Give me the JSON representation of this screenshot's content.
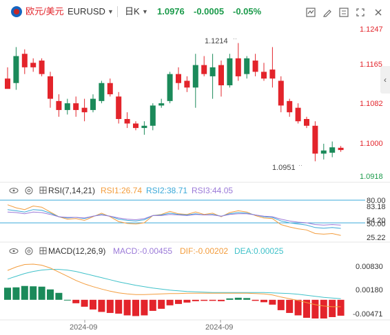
{
  "header": {
    "pair_name": "欧元/美元",
    "symbol": "EURUSD",
    "timeframe": "日K",
    "price": "1.0976",
    "change": "-0.0005",
    "change_pct": "-0.05%"
  },
  "colors": {
    "up": "#1b8a5a",
    "down": "#e3242b",
    "price_change": "#1a9a4a",
    "rsi1": "#f39c3c",
    "rsi2": "#3aa8d8",
    "rsi3": "#9b7ad8",
    "macd_line": "#f39c3c",
    "dea_line": "#3fc1c9"
  },
  "toolbar_icons": [
    "indicator-icon",
    "draw-icon",
    "settings-icon",
    "fullscreen-icon",
    "close-icon"
  ],
  "chart_data": [
    {
      "type": "candlestick",
      "price_axis_ticks": [
        "1.1247",
        "1.1165",
        "1.1082",
        "1.1000",
        "1.0918"
      ],
      "ylim": [
        1.0918,
        1.1247
      ],
      "annotations": {
        "high_label": "1.1214",
        "low_label": "1.0951"
      },
      "candles": [
        {
          "o": 1.1135,
          "h": 1.116,
          "l": 1.1115,
          "c": 1.1112
        },
        {
          "o": 1.1125,
          "h": 1.1205,
          "l": 1.111,
          "c": 1.1185
        },
        {
          "o": 1.119,
          "h": 1.12,
          "l": 1.1145,
          "c": 1.116
        },
        {
          "o": 1.117,
          "h": 1.118,
          "l": 1.115,
          "c": 1.116
        },
        {
          "o": 1.1175,
          "h": 1.118,
          "l": 1.114,
          "c": 1.1145
        },
        {
          "o": 1.114,
          "h": 1.115,
          "l": 1.107,
          "c": 1.109
        },
        {
          "o": 1.1085,
          "h": 1.11,
          "l": 1.105,
          "c": 1.1065
        },
        {
          "o": 1.1065,
          "h": 1.109,
          "l": 1.1055,
          "c": 1.108
        },
        {
          "o": 1.108,
          "h": 1.1095,
          "l": 1.105,
          "c": 1.1065
        },
        {
          "o": 1.107,
          "h": 1.109,
          "l": 1.104,
          "c": 1.106
        },
        {
          "o": 1.1065,
          "h": 1.11,
          "l": 1.106,
          "c": 1.109
        },
        {
          "o": 1.1085,
          "h": 1.113,
          "l": 1.108,
          "c": 1.1125
        },
        {
          "o": 1.1125,
          "h": 1.1135,
          "l": 1.1095,
          "c": 1.11
        },
        {
          "o": 1.1095,
          "h": 1.1105,
          "l": 1.1035,
          "c": 1.1045
        },
        {
          "o": 1.1045,
          "h": 1.106,
          "l": 1.1025,
          "c": 1.1035
        },
        {
          "o": 1.1035,
          "h": 1.104,
          "l": 1.102,
          "c": 1.1025
        },
        {
          "o": 1.1025,
          "h": 1.104,
          "l": 1.101,
          "c": 1.103
        },
        {
          "o": 1.103,
          "h": 1.108,
          "l": 1.102,
          "c": 1.1075
        },
        {
          "o": 1.1075,
          "h": 1.109,
          "l": 1.107,
          "c": 1.108
        },
        {
          "o": 1.1085,
          "h": 1.115,
          "l": 1.108,
          "c": 1.1145
        },
        {
          "o": 1.1145,
          "h": 1.116,
          "l": 1.111,
          "c": 1.1125
        },
        {
          "o": 1.113,
          "h": 1.114,
          "l": 1.1105,
          "c": 1.1115
        },
        {
          "o": 1.1115,
          "h": 1.119,
          "l": 1.107,
          "c": 1.1165
        },
        {
          "o": 1.1165,
          "h": 1.1185,
          "l": 1.114,
          "c": 1.1145
        },
        {
          "o": 1.114,
          "h": 1.119,
          "l": 1.109,
          "c": 1.116
        },
        {
          "o": 1.1165,
          "h": 1.1175,
          "l": 1.1095,
          "c": 1.112
        },
        {
          "o": 1.112,
          "h": 1.119,
          "l": 1.1115,
          "c": 1.118
        },
        {
          "o": 1.118,
          "h": 1.1214,
          "l": 1.113,
          "c": 1.114
        },
        {
          "o": 1.1145,
          "h": 1.1185,
          "l": 1.1135,
          "c": 1.118
        },
        {
          "o": 1.1175,
          "h": 1.119,
          "l": 1.114,
          "c": 1.115
        },
        {
          "o": 1.115,
          "h": 1.117,
          "l": 1.113,
          "c": 1.1135
        },
        {
          "o": 1.1155,
          "h": 1.1205,
          "l": 1.1115,
          "c": 1.1135
        },
        {
          "o": 1.113,
          "h": 1.114,
          "l": 1.106,
          "c": 1.1075
        },
        {
          "o": 1.1085,
          "h": 1.109,
          "l": 1.105,
          "c": 1.106
        },
        {
          "o": 1.107,
          "h": 1.108,
          "l": 1.1035,
          "c": 1.104
        },
        {
          "o": 1.1045,
          "h": 1.105,
          "l": 1.1025,
          "c": 1.103
        },
        {
          "o": 1.103,
          "h": 1.104,
          "l": 1.0951,
          "c": 1.0968
        },
        {
          "o": 1.0968,
          "h": 1.099,
          "l": 1.0955,
          "c": 1.0975
        },
        {
          "o": 1.097,
          "h": 1.0995,
          "l": 1.096,
          "c": 1.0982
        },
        {
          "o": 1.0981,
          "h": 1.0985,
          "l": 1.0972,
          "c": 1.0976
        }
      ]
    },
    {
      "type": "line",
      "indicator": "RSI",
      "label": "RSI(7,14,21)",
      "legend": [
        "RSI1:26.74",
        "RSI2:38.71",
        "RSI3:44.05"
      ],
      "axis_ticks": [
        "80.00",
        "83.18",
        "54.20",
        "50.00",
        "25.22"
      ],
      "ylim": [
        18,
        88
      ],
      "reference_lines": [
        80,
        50
      ],
      "series": [
        {
          "name": "RSI1",
          "values": [
            78,
            73,
            70,
            76,
            74,
            66,
            58,
            54,
            55,
            52,
            58,
            64,
            58,
            50,
            47,
            46,
            48,
            60,
            62,
            67,
            63,
            62,
            66,
            62,
            64,
            58,
            65,
            68,
            66,
            60,
            56,
            55,
            45,
            41,
            38,
            36,
            30,
            29,
            30,
            27
          ]
        },
        {
          "name": "RSI2",
          "values": [
            70,
            68,
            66,
            70,
            69,
            64,
            58,
            56,
            57,
            55,
            59,
            62,
            59,
            54,
            52,
            51,
            53,
            60,
            61,
            64,
            62,
            61,
            63,
            61,
            62,
            59,
            63,
            65,
            64,
            61,
            58,
            57,
            51,
            48,
            46,
            44,
            40,
            39,
            40,
            38.7
          ]
        },
        {
          "name": "RSI3",
          "values": [
            66,
            65,
            63,
            66,
            65,
            62,
            58,
            57,
            57,
            56,
            59,
            61,
            59,
            56,
            54,
            53,
            55,
            60,
            60,
            62,
            61,
            60,
            62,
            61,
            61,
            59,
            62,
            63,
            63,
            61,
            59,
            58,
            54,
            51,
            49,
            48,
            45,
            44,
            45,
            44
          ]
        }
      ]
    },
    {
      "type": "bar",
      "indicator": "MACD",
      "label": "MACD(12,26,9)",
      "legend": [
        "MACD:-0.00455",
        "DIF:-0.00202",
        "DEA:0.00025"
      ],
      "axis_ticks": [
        "0.00830",
        "0.00180",
        "-0.00471"
      ],
      "x_tick_labels": [
        "2024-09",
        "2024-09"
      ],
      "ylim": [
        -0.0058,
        0.0115
      ],
      "histogram": [
        0.0035,
        0.0036,
        0.004,
        0.0039,
        0.0038,
        0.003,
        0.002,
        0.0,
        -0.001,
        -0.002,
        -0.0028,
        -0.0035,
        -0.0038,
        -0.004,
        -0.0045,
        -0.0047,
        -0.0045,
        -0.0032,
        -0.0026,
        -0.0016,
        -0.0012,
        -0.0008,
        -0.0004,
        -0.0003,
        -0.0003,
        -0.0004,
        0.0004,
        0.0006,
        0.0005,
        -0.0003,
        -0.0007,
        -0.0014,
        -0.003,
        -0.0038,
        -0.0045,
        -0.0052,
        -0.0054,
        -0.0054,
        -0.005,
        -0.0046
      ],
      "dif": [
        0.0085,
        0.0095,
        0.0102,
        0.0103,
        0.01,
        0.0092,
        0.008,
        0.0068,
        0.0056,
        0.0046,
        0.0038,
        0.0031,
        0.0025,
        0.002,
        0.0017,
        0.0015,
        0.0015,
        0.0016,
        0.0017,
        0.0018,
        0.0018,
        0.0019,
        0.0019,
        0.0019,
        0.0019,
        0.0019,
        0.0019,
        0.0019,
        0.0019,
        0.0018,
        0.0017,
        0.0014,
        0.0008,
        0.0003,
        -0.0002,
        -0.0008,
        -0.0014,
        -0.0018,
        -0.002,
        -0.002
      ],
      "dea": [
        0.006,
        0.0068,
        0.0076,
        0.0082,
        0.0086,
        0.0088,
        0.0088,
        0.0086,
        0.0082,
        0.0076,
        0.007,
        0.0064,
        0.0058,
        0.0052,
        0.0047,
        0.0042,
        0.0038,
        0.0034,
        0.0031,
        0.0028,
        0.0026,
        0.0024,
        0.0023,
        0.0022,
        0.0021,
        0.0021,
        0.0021,
        0.0021,
        0.0021,
        0.0021,
        0.0021,
        0.002,
        0.0019,
        0.0018,
        0.0016,
        0.0013,
        0.001,
        0.0007,
        0.0005,
        0.0003
      ]
    }
  ]
}
